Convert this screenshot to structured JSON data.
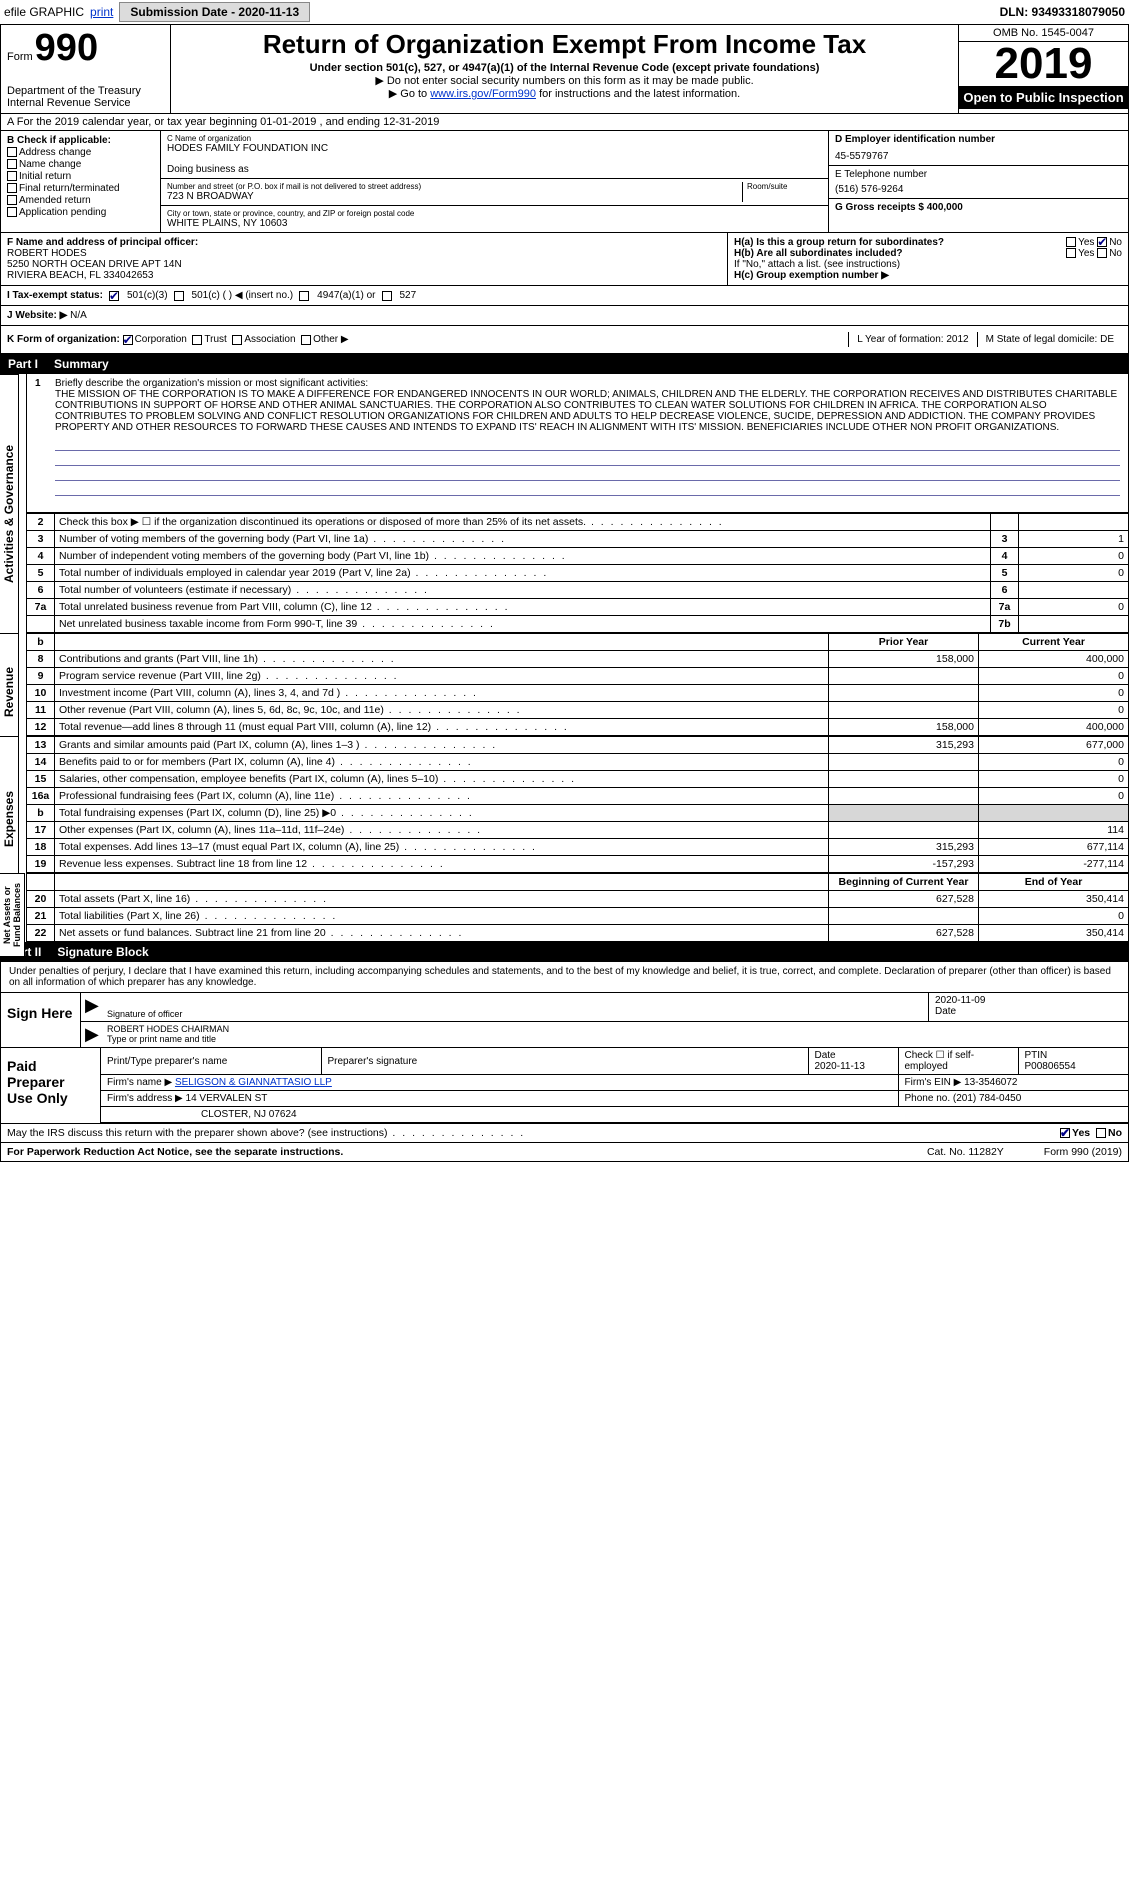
{
  "topbar": {
    "efile": "efile GRAPHIC",
    "print": "print",
    "submission_label": "Submission Date - 2020-11-13",
    "dln": "DLN: 93493318079050"
  },
  "header": {
    "form_word": "Form",
    "form_num": "990",
    "dept": "Department of the Treasury\nInternal Revenue Service",
    "title": "Return of Organization Exempt From Income Tax",
    "sub1": "Under section 501(c), 527, or 4947(a)(1) of the Internal Revenue Code (except private foundations)",
    "sub2_prefix": "▶ Do not enter social security numbers on this form as it may be made public.",
    "sub3_prefix": "▶ Go to ",
    "sub3_link": "www.irs.gov/Form990",
    "sub3_suffix": " for instructions and the latest information.",
    "omb": "OMB No. 1545-0047",
    "year": "2019",
    "open": "Open to Public Inspection"
  },
  "cal_row": "A   For the 2019 calendar year, or tax year beginning 01-01-2019   , and ending 12-31-2019",
  "check_if": {
    "title": "B Check if applicable:",
    "opts": [
      "Address change",
      "Name change",
      "Initial return",
      "Final return/terminated",
      "Amended return",
      "Application pending"
    ]
  },
  "org": {
    "c_label": "C Name of organization",
    "name": "HODES FAMILY FOUNDATION INC",
    "dba_label": "Doing business as",
    "addr_label": "Number and street (or P.O. box if mail is not delivered to street address)",
    "room_label": "Room/suite",
    "addr": "723 N BROADWAY",
    "city_label": "City or town, state or province, country, and ZIP or foreign postal code",
    "city": "WHITE PLAINS, NY  10603"
  },
  "right_info": {
    "d_label": "D Employer identification number",
    "ein": "45-5579767",
    "e_label": "E Telephone number",
    "phone": "(516) 576-9264",
    "g_label": "G Gross receipts $ 400,000"
  },
  "officer": {
    "f_label": "F  Name and address of principal officer:",
    "name": "ROBERT HODES",
    "addr1": "5250 NORTH OCEAN DRIVE APT 14N",
    "addr2": "RIVIERA BEACH, FL  334042653"
  },
  "h_block": {
    "ha": "H(a)  Is this a group return for subordinates?",
    "ha_yes": "Yes",
    "ha_no": "No",
    "hb": "H(b)  Are all subordinates included?",
    "hb_yes": "Yes",
    "hb_no": "No",
    "hb_note": "If \"No,\" attach a list. (see instructions)",
    "hc": "H(c)  Group exemption number ▶"
  },
  "tax_status": {
    "label": "I   Tax-exempt status:",
    "opt1": "501(c)(3)",
    "opt2": "501(c) (   ) ◀ (insert no.)",
    "opt3": "4947(a)(1) or",
    "opt4": "527"
  },
  "website": {
    "label": "J   Website: ▶",
    "val": "N/A"
  },
  "form_of_org": {
    "label": "K Form of organization:",
    "opts": [
      "Corporation",
      "Trust",
      "Association",
      "Other ▶"
    ],
    "l_label": "L Year of formation: 2012",
    "m_label": "M State of legal domicile: DE"
  },
  "part1": {
    "tag": "Part I",
    "title": "Summary"
  },
  "mission": {
    "num": "1",
    "label": "Briefly describe the organization's mission or most significant activities:",
    "text": "THE MISSION OF THE CORPORATION IS TO MAKE A DIFFERENCE FOR ENDANGERED INNOCENTS IN OUR WORLD; ANIMALS, CHILDREN AND THE ELDERLY. THE CORPORATION RECEIVES AND DISTRIBUTES CHARITABLE CONTRIBUTIONS IN SUPPORT OF HORSE AND OTHER ANIMAL SANCTUARIES. THE CORPORATION ALSO CONTRIBUTES TO CLEAN WATER SOLUTIONS FOR CHILDREN IN AFRICA. THE CORPORATION ALSO CONTRIBUTES TO PROBLEM SOLVING AND CONFLICT RESOLUTION ORGANIZATIONS FOR CHILDREN AND ADULTS TO HELP DECREASE VIOLENCE, SUCIDE, DEPRESSION AND ADDICTION. THE COMPANY PROVIDES PROPERTY AND OTHER RESOURCES TO FORWARD THESE CAUSES AND INTENDS TO EXPAND ITS' REACH IN ALIGNMENT WITH ITS' MISSION. BENEFICIARIES INCLUDE OTHER NON PROFIT ORGANIZATIONS."
  },
  "gov_rows": [
    {
      "n": "2",
      "d": "Check this box ▶ ☐ if the organization discontinued its operations or disposed of more than 25% of its net assets.",
      "lab": "",
      "v": ""
    },
    {
      "n": "3",
      "d": "Number of voting members of the governing body (Part VI, line 1a)",
      "lab": "3",
      "v": "1"
    },
    {
      "n": "4",
      "d": "Number of independent voting members of the governing body (Part VI, line 1b)",
      "lab": "4",
      "v": "0"
    },
    {
      "n": "5",
      "d": "Total number of individuals employed in calendar year 2019 (Part V, line 2a)",
      "lab": "5",
      "v": "0"
    },
    {
      "n": "6",
      "d": "Total number of volunteers (estimate if necessary)",
      "lab": "6",
      "v": ""
    },
    {
      "n": "7a",
      "d": "Total unrelated business revenue from Part VIII, column (C), line 12",
      "lab": "7a",
      "v": "0"
    },
    {
      "n": "",
      "d": "Net unrelated business taxable income from Form 990-T, line 39",
      "lab": "7b",
      "v": ""
    }
  ],
  "rev_hdr": {
    "b": "b",
    "py": "Prior Year",
    "cy": "Current Year"
  },
  "rev_rows": [
    {
      "n": "8",
      "d": "Contributions and grants (Part VIII, line 1h)",
      "py": "158,000",
      "cy": "400,000"
    },
    {
      "n": "9",
      "d": "Program service revenue (Part VIII, line 2g)",
      "py": "",
      "cy": "0"
    },
    {
      "n": "10",
      "d": "Investment income (Part VIII, column (A), lines 3, 4, and 7d )",
      "py": "",
      "cy": "0"
    },
    {
      "n": "11",
      "d": "Other revenue (Part VIII, column (A), lines 5, 6d, 8c, 9c, 10c, and 11e)",
      "py": "",
      "cy": "0"
    },
    {
      "n": "12",
      "d": "Total revenue—add lines 8 through 11 (must equal Part VIII, column (A), line 12)",
      "py": "158,000",
      "cy": "400,000"
    }
  ],
  "exp_rows": [
    {
      "n": "13",
      "d": "Grants and similar amounts paid (Part IX, column (A), lines 1–3 )",
      "py": "315,293",
      "cy": "677,000"
    },
    {
      "n": "14",
      "d": "Benefits paid to or for members (Part IX, column (A), line 4)",
      "py": "",
      "cy": "0"
    },
    {
      "n": "15",
      "d": "Salaries, other compensation, employee benefits (Part IX, column (A), lines 5–10)",
      "py": "",
      "cy": "0"
    },
    {
      "n": "16a",
      "d": "Professional fundraising fees (Part IX, column (A), line 11e)",
      "py": "",
      "cy": "0"
    },
    {
      "n": "b",
      "d": "Total fundraising expenses (Part IX, column (D), line 25) ▶0",
      "py": "shade",
      "cy": "shade"
    },
    {
      "n": "17",
      "d": "Other expenses (Part IX, column (A), lines 11a–11d, 11f–24e)",
      "py": "",
      "cy": "114"
    },
    {
      "n": "18",
      "d": "Total expenses. Add lines 13–17 (must equal Part IX, column (A), line 25)",
      "py": "315,293",
      "cy": "677,114"
    },
    {
      "n": "19",
      "d": "Revenue less expenses. Subtract line 18 from line 12",
      "py": "-157,293",
      "cy": "-277,114"
    }
  ],
  "net_hdr": {
    "py": "Beginning of Current Year",
    "cy": "End of Year"
  },
  "net_rows": [
    {
      "n": "20",
      "d": "Total assets (Part X, line 16)",
      "py": "627,528",
      "cy": "350,414"
    },
    {
      "n": "21",
      "d": "Total liabilities (Part X, line 26)",
      "py": "",
      "cy": "0"
    },
    {
      "n": "22",
      "d": "Net assets or fund balances. Subtract line 21 from line 20",
      "py": "627,528",
      "cy": "350,414"
    }
  ],
  "part2": {
    "tag": "Part II",
    "title": "Signature Block"
  },
  "sig_intro": "Under penalties of perjury, I declare that I have examined this return, including accompanying schedules and statements, and to the best of my knowledge and belief, it is true, correct, and complete. Declaration of preparer (other than officer) is based on all information of which preparer has any knowledge.",
  "sign": {
    "left": "Sign Here",
    "sig_label": "Signature of officer",
    "date": "2020-11-09",
    "date_label": "Date",
    "name": "ROBERT HODES CHAIRMAN",
    "name_label": "Type or print name and title"
  },
  "prep": {
    "left": "Paid Preparer Use Only",
    "h1": "Print/Type preparer's name",
    "h2": "Preparer's signature",
    "h3": "Date",
    "h3v": "2020-11-13",
    "h4a": "Check ☐ if self-employed",
    "h4b_label": "PTIN",
    "h4b": "P00806554",
    "firm_label": "Firm's name   ▶",
    "firm": "SELIGSON & GIANNATTASIO LLP",
    "firm_ein": "Firm's EIN ▶ 13-3546072",
    "addr_label": "Firm's address ▶",
    "addr1": "14 VERVALEN ST",
    "addr2": "CLOSTER, NJ  07624",
    "phone": "Phone no. (201) 784-0450"
  },
  "discuss": {
    "q": "May the IRS discuss this return with the preparer shown above? (see instructions)",
    "yes": "Yes",
    "no": "No"
  },
  "footer": {
    "left": "For Paperwork Reduction Act Notice, see the separate instructions.",
    "mid": "Cat. No. 11282Y",
    "right": "Form 990 (2019)"
  },
  "vtabs": {
    "gov": "Activities & Governance",
    "rev": "Revenue",
    "exp": "Expenses",
    "net": "Net Assets or Fund Balances"
  }
}
